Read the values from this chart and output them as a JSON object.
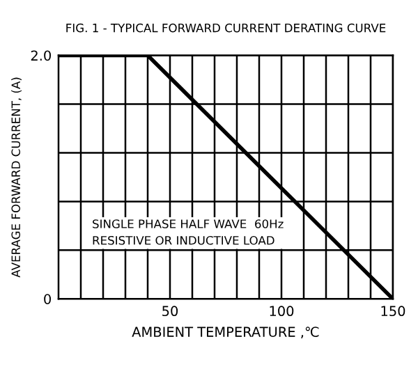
{
  "chart_data": {
    "type": "line",
    "title": "FIG. 1 - TYPICAL FORWARD CURRENT DERATING CURVE",
    "xlabel": "AMBIENT TEMPERATURE ,℃",
    "ylabel": "AVERAGE FORWARD CURRENT, (A)",
    "x": [
      0,
      40,
      150
    ],
    "series": [
      {
        "color": "#000000",
        "values": [
          2.0,
          2.0,
          0
        ]
      }
    ],
    "xlim": [
      0,
      150
    ],
    "xticks": [
      {
        "value": 10,
        "label": null
      },
      {
        "value": 20,
        "label": null
      },
      {
        "value": 30,
        "label": null
      },
      {
        "value": 40,
        "label": null
      },
      50,
      {
        "value": 60,
        "label": null
      },
      {
        "value": 70,
        "label": null
      },
      {
        "value": 80,
        "label": null
      },
      {
        "value": 90,
        "label": null
      },
      100,
      {
        "value": 110,
        "label": null
      },
      {
        "value": 120,
        "label": null
      },
      {
        "value": 130,
        "label": null
      },
      {
        "value": 140,
        "label": null
      },
      150
    ],
    "ylim": [
      0,
      2.0
    ],
    "yticks": [
      0,
      {
        "value": 0.4,
        "label": null
      },
      {
        "value": 0.8,
        "label": null
      },
      {
        "value": 1.2,
        "label": null
      },
      {
        "value": 1.6,
        "label": null
      },
      {
        "value": 2.0,
        "label": "2.0"
      }
    ],
    "grid": true,
    "annotations": [
      "SINGLE PHASE HALF WAVE  60Hz\nRESISTIVE OR INDUCTIVE LOAD"
    ]
  }
}
